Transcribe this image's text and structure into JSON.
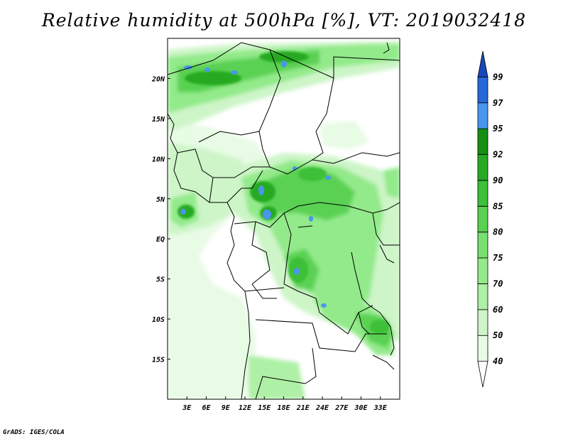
{
  "title": "Relative humidity at 500hPa [%], VT: 2019032418",
  "credit": "GrADS: IGES/COLA",
  "map": {
    "lon_range": [
      0,
      36
    ],
    "lat_range": [
      -20,
      25
    ],
    "lat_ticks": [
      "20N",
      "15N",
      "10N",
      "5N",
      "EQ",
      "5S",
      "10S",
      "15S"
    ],
    "lat_tick_values": [
      20,
      15,
      10,
      5,
      0,
      -5,
      -10,
      -15
    ],
    "lon_ticks": [
      "3E",
      "6E",
      "9E",
      "12E",
      "15E",
      "18E",
      "21E",
      "24E",
      "27E",
      "30E",
      "33E"
    ],
    "lon_tick_values": [
      3,
      6,
      9,
      12,
      15,
      18,
      21,
      24,
      27,
      30,
      33
    ]
  },
  "colorbar": {
    "levels": [
      "40",
      "50",
      "60",
      "70",
      "75",
      "80",
      "85",
      "90",
      "92",
      "95",
      "97",
      "99"
    ],
    "colors": [
      "#ffffff",
      "#e8fbe5",
      "#cdf5c8",
      "#aef0a6",
      "#93ea8a",
      "#78e06e",
      "#5ad152",
      "#3dbf39",
      "#26aa24",
      "#148f12",
      "#4a95ee",
      "#2768d8",
      "#1648b8"
    ],
    "arrow_ends": true
  }
}
